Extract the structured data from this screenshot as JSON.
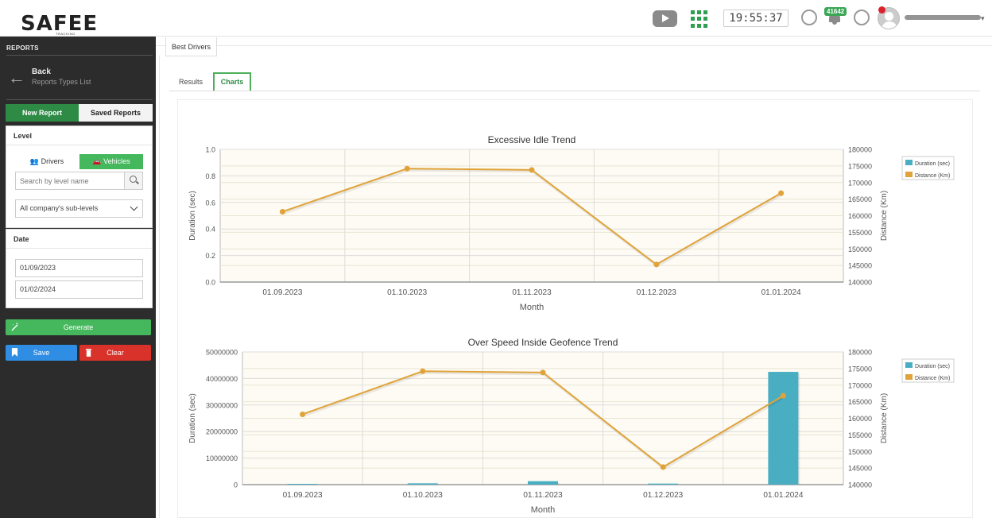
{
  "header": {
    "logo_text": "SAFEE",
    "logo_sub": "TRACKING SYSTEM",
    "clock": "19:55:37",
    "notifications_count": "41642"
  },
  "sidebar": {
    "title": "REPORTS",
    "back_label": "Back",
    "back_sub": "Reports Types List",
    "tab_new": "New Report",
    "tab_saved": "Saved Reports",
    "level_title": "Level",
    "level_drivers": "Drivers",
    "level_vehicles": "Vehicles",
    "search_placeholder": "Search by level name",
    "sublevel_select": "All company's sub-levels",
    "date_title": "Date",
    "date_from": "01/09/2023",
    "date_to": "01/02/2024",
    "generate": "Generate",
    "save": "Save",
    "clear": "Clear"
  },
  "main": {
    "report_tab": "Best Drivers",
    "tab_results": "Results",
    "tab_charts": "Charts"
  },
  "colors": {
    "green": "#2d8b45",
    "light_green": "#45b85d",
    "blue": "#2f8de4",
    "red": "#d9322a",
    "bar": "#4aaec3",
    "line": "#e0a33a",
    "plot_bg": "#fdfbf3"
  },
  "chart_data": [
    {
      "type": "line",
      "title": "Excessive Idle Trend",
      "xlabel": "Month",
      "ylabel": "Duration (sec)",
      "y2label": "Distance (Km)",
      "categories": [
        "01.09.2023",
        "01.10.2023",
        "01.11.2023",
        "01.12.2023",
        "01.01.2024"
      ],
      "ylim": [
        0,
        1.0
      ],
      "yticks": [
        "0.0",
        "0.2",
        "0.4",
        "0.6",
        "0.8",
        "1.0"
      ],
      "y2lim": [
        140000,
        180000
      ],
      "y2ticks": [
        "140000",
        "145000",
        "150000",
        "155000",
        "160000",
        "165000",
        "170000",
        "175000",
        "180000"
      ],
      "legend_position": "right",
      "series": [
        {
          "name": "Duration (sec)",
          "axis": "left",
          "kind": "bar",
          "values": [
            0,
            0,
            0,
            0,
            0
          ]
        },
        {
          "name": "Distance (Km)",
          "axis": "right",
          "kind": "line",
          "values": [
            161200,
            174200,
            173800,
            145300,
            166800
          ]
        }
      ]
    },
    {
      "type": "bar",
      "title": "Over Speed Inside Geofence Trend",
      "xlabel": "Month",
      "ylabel": "Duration (sec)",
      "y2label": "Distance (Km)",
      "categories": [
        "01.09.2023",
        "01.10.2023",
        "01.11.2023",
        "01.12.2023",
        "01.01.2024"
      ],
      "ylim": [
        0,
        50000000
      ],
      "yticks": [
        "0",
        "10000000",
        "20000000",
        "30000000",
        "40000000",
        "50000000"
      ],
      "y2lim": [
        140000,
        180000
      ],
      "y2ticks": [
        "140000",
        "145000",
        "150000",
        "155000",
        "160000",
        "165000",
        "170000",
        "175000",
        "180000"
      ],
      "legend_position": "right",
      "series": [
        {
          "name": "Duration (sec)",
          "axis": "left",
          "kind": "bar",
          "values": [
            300000,
            500000,
            1300000,
            400000,
            42500000
          ]
        },
        {
          "name": "Distance (Km)",
          "axis": "right",
          "kind": "line",
          "values": [
            161200,
            174200,
            173800,
            145300,
            166800
          ]
        }
      ]
    }
  ]
}
